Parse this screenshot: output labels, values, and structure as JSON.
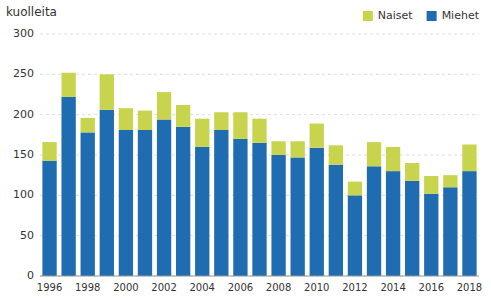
{
  "chart_data": {
    "type": "bar",
    "stacked": true,
    "ylabel": "kuolleita",
    "categories": [
      "1996",
      null,
      "1998",
      null,
      "2000",
      null,
      "2002",
      null,
      "2004",
      null,
      "2006",
      null,
      "2008",
      null,
      "2010",
      null,
      "2012",
      null,
      "2014",
      null,
      "2016",
      null,
      "2018"
    ],
    "series": [
      {
        "name": "Miehet",
        "color": "#1f6cb0",
        "values": [
          143,
          222,
          178,
          206,
          181,
          181,
          194,
          185,
          160,
          181,
          170,
          165,
          150,
          147,
          159,
          138,
          100,
          136,
          130,
          118,
          102,
          110,
          130
        ]
      },
      {
        "name": "Naiset",
        "color": "#c8d44e",
        "values": [
          23,
          30,
          18,
          44,
          27,
          24,
          34,
          27,
          35,
          22,
          33,
          30,
          17,
          20,
          30,
          24,
          17,
          30,
          30,
          22,
          22,
          15,
          33
        ]
      }
    ],
    "ylim": [
      0,
      300
    ],
    "yticks": [
      0,
      50,
      100,
      150,
      200,
      250,
      300
    ],
    "grid": true,
    "legend": "top-right"
  }
}
